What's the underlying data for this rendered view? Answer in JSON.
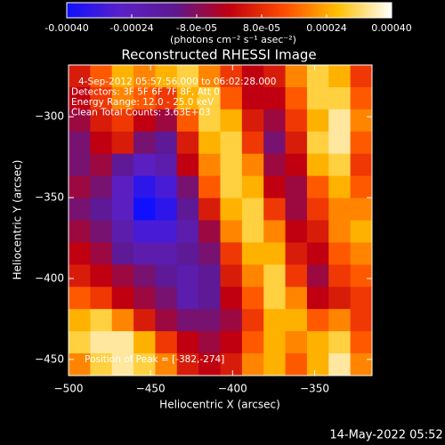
{
  "chart_data": {
    "type": "heatmap",
    "title": "Reconstructed RHESSI Image",
    "x_label": "Heliocentric X (arcsec)",
    "y_label": "Heliocentric Y (arcsec)",
    "xlim": [
      -500,
      -315
    ],
    "ylim": [
      -460,
      -268
    ],
    "xticks": [
      {
        "value": -500,
        "label": "−500"
      },
      {
        "value": -450,
        "label": "−450"
      },
      {
        "value": -400,
        "label": "−400"
      },
      {
        "value": -350,
        "label": "−350"
      }
    ],
    "yticks": [
      {
        "value": -300,
        "label": "−300"
      },
      {
        "value": -350,
        "label": "−350"
      },
      {
        "value": -400,
        "label": "−400"
      },
      {
        "value": -450,
        "label": "−450"
      }
    ],
    "colorbar": {
      "label": "(photons cm⁻² s⁻¹ asec⁻²)",
      "lim": [
        -0.0004,
        0.0004
      ],
      "ticks": [
        {
          "value": -0.0004,
          "label": "-0.00040"
        },
        {
          "value": -0.00024,
          "label": "-0.00024"
        },
        {
          "value": -8e-05,
          "label": "-8.0e-05"
        },
        {
          "value": 8e-05,
          "label": "8.0e-05"
        },
        {
          "value": 0.00024,
          "label": "0.00024"
        },
        {
          "value": 0.0004,
          "label": "0.00040"
        }
      ],
      "colors": [
        "#1010ff",
        "#5a20c8",
        "#5e1890",
        "#c00010",
        "#ff4a00",
        "#ffc000",
        "#ffffff"
      ]
    },
    "annotations": [
      "4-Sep-2012 05:57:56.000 to 06:02:28.000",
      "Detectors: 3F 5F 6F 7F 8F, Att 0",
      "Energy Range: 12.0 - 25.0 keV",
      "Clean     Total Counts: 3.63E+03"
    ],
    "peak_label": "Position of Peak = [-382,-274]",
    "footer": "14-May-2022 05:52",
    "z": [
      [
        5e-05,
        0.00015,
        0.00025,
        0.0002,
        0.00025,
        0.0003,
        0.0002,
        0.0001,
        0,
        5e-05,
        0.0002,
        0.0003,
        0.00025,
        0.0001
      ],
      [
        0,
        0.0001,
        0.0002,
        0.00015,
        0.0001,
        0.00025,
        0.0003,
        0.00015,
        0,
        0,
        0.00015,
        0.0003,
        0.0003,
        0.00015
      ],
      [
        -5e-05,
        5e-05,
        0.0001,
        0,
        -5e-05,
        0.00015,
        0.0003,
        0.00025,
        5e-05,
        -5e-05,
        0.0001,
        0.00025,
        0.00035,
        0.0002
      ],
      [
        -0.0001,
        0,
        5e-05,
        -0.0001,
        -0.00015,
        5e-05,
        0.00025,
        0.0003,
        0.0001,
        -0.0001,
        5e-05,
        0.0003,
        0.00035,
        0.00015
      ],
      [
        -0.0001,
        -5e-05,
        -0.00015,
        -0.00025,
        -0.0002,
        0,
        0.0002,
        0.0003,
        0.0002,
        -5e-05,
        0,
        0.00025,
        0.0003,
        0.0001
      ],
      [
        -5e-05,
        -0.0001,
        -0.00025,
        -0.00035,
        -0.0003,
        -0.0001,
        0.00015,
        0.0003,
        0.00025,
        0,
        -5e-05,
        0.00015,
        0.00025,
        0.00015
      ],
      [
        -0.0001,
        -0.00015,
        -0.00025,
        -0.0004,
        -0.00035,
        -0.00015,
        5e-05,
        0.00025,
        0.0003,
        0.0001,
        -5e-05,
        0.0001,
        0.0002,
        0.0002
      ],
      [
        -5e-05,
        -0.0001,
        -0.0002,
        -0.0003,
        -0.0003,
        -0.0002,
        -5e-05,
        0.0002,
        0.0003,
        0.0002,
        0,
        5e-05,
        0.0002,
        0.00025
      ],
      [
        0,
        -5e-05,
        -0.00015,
        -0.0002,
        -0.0002,
        -0.00015,
        -0.0001,
        0.0001,
        0.00025,
        0.00025,
        5e-05,
        0,
        0.00015,
        0.0002
      ],
      [
        5e-05,
        0,
        -5e-05,
        -0.0001,
        -0.00015,
        -0.0002,
        -0.00015,
        5e-05,
        0.0002,
        0.0003,
        0.0001,
        -5e-05,
        0.0001,
        0.00015
      ],
      [
        0.00015,
        0.0001,
        0,
        -5e-05,
        -0.0001,
        -0.0002,
        -0.00015,
        0,
        0.00015,
        0.0003,
        0.0002,
        0,
        5e-05,
        0.0001
      ],
      [
        0.00025,
        0.0003,
        0.0002,
        5e-05,
        -5e-05,
        -0.0001,
        -0.0001,
        -5e-05,
        0.0001,
        0.00025,
        0.00025,
        0.00015,
        0.0002,
        0.0001
      ],
      [
        0.0003,
        0.00035,
        0.00035,
        0.00025,
        0.0001,
        0,
        -5e-05,
        0,
        0.00015,
        0.00025,
        0.0002,
        0.00025,
        0.0003,
        0.00015
      ],
      [
        0.0002,
        0.0003,
        0.00035,
        0.0003,
        0.0002,
        5e-05,
        0,
        5e-05,
        0.0002,
        0.00025,
        0.00015,
        0.00025,
        0.00035,
        0.0002
      ]
    ]
  }
}
